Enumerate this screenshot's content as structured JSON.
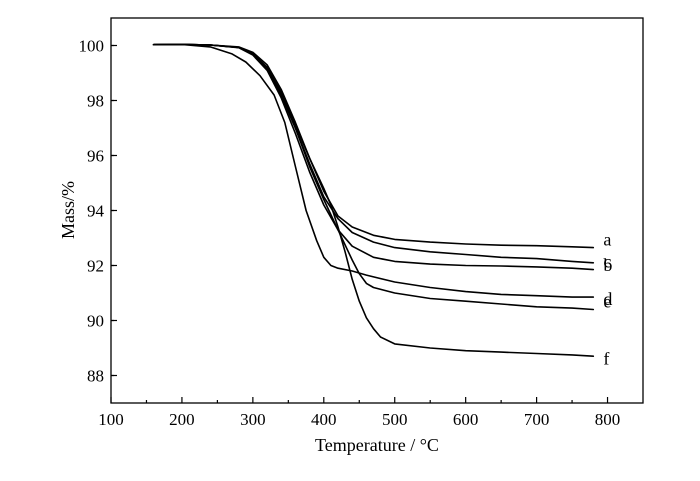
{
  "chart_data": {
    "type": "line",
    "title": "",
    "xlabel": "Temperature / °C",
    "ylabel": "Mass/%",
    "xlim": [
      100,
      850
    ],
    "ylim": [
      87,
      101
    ],
    "xticks": [
      100,
      200,
      300,
      400,
      500,
      600,
      700,
      800
    ],
    "yticks": [
      88,
      90,
      92,
      94,
      96,
      98,
      100
    ],
    "grid": false,
    "legend": "none",
    "series": [
      {
        "name": "a",
        "x": [
          160,
          200,
          240,
          280,
          300,
          320,
          340,
          360,
          380,
          400,
          420,
          440,
          470,
          500,
          550,
          600,
          650,
          700,
          750,
          780
        ],
        "y": [
          100.03,
          100.04,
          100.02,
          99.95,
          99.75,
          99.3,
          98.4,
          97.2,
          95.9,
          94.7,
          93.8,
          93.4,
          93.1,
          92.95,
          92.85,
          92.78,
          92.74,
          92.72,
          92.68,
          92.65
        ]
      },
      {
        "name": "b",
        "x": [
          160,
          200,
          240,
          280,
          300,
          320,
          340,
          360,
          380,
          400,
          420,
          440,
          470,
          500,
          550,
          600,
          650,
          700,
          750,
          780
        ],
        "y": [
          100.03,
          100.04,
          100.02,
          99.93,
          99.7,
          99.2,
          98.2,
          97.0,
          95.7,
          94.5,
          93.7,
          93.2,
          92.85,
          92.65,
          92.5,
          92.4,
          92.3,
          92.25,
          92.15,
          92.1
        ]
      },
      {
        "name": "c",
        "x": [
          160,
          200,
          240,
          280,
          300,
          320,
          340,
          360,
          380,
          400,
          420,
          440,
          470,
          500,
          550,
          600,
          650,
          700,
          750,
          780
        ],
        "y": [
          100.03,
          100.04,
          100.02,
          99.92,
          99.65,
          99.1,
          98.1,
          96.8,
          95.4,
          94.2,
          93.3,
          92.7,
          92.3,
          92.15,
          92.05,
          92.0,
          91.98,
          91.95,
          91.9,
          91.85
        ]
      },
      {
        "name": "d",
        "x": [
          160,
          200,
          240,
          270,
          290,
          310,
          330,
          345,
          360,
          375,
          390,
          400,
          410,
          420,
          440,
          460,
          500,
          550,
          600,
          650,
          700,
          750,
          780
        ],
        "y": [
          100.03,
          100.04,
          99.95,
          99.7,
          99.4,
          98.9,
          98.2,
          97.2,
          95.6,
          94.0,
          92.9,
          92.3,
          92.0,
          91.9,
          91.8,
          91.65,
          91.4,
          91.2,
          91.05,
          90.95,
          90.9,
          90.85,
          90.85
        ]
      },
      {
        "name": "e",
        "x": [
          160,
          200,
          240,
          280,
          300,
          320,
          340,
          360,
          380,
          400,
          420,
          440,
          450,
          460,
          470,
          500,
          550,
          600,
          650,
          700,
          750,
          780
        ],
        "y": [
          100.03,
          100.04,
          100.02,
          99.93,
          99.7,
          99.15,
          98.2,
          97.0,
          95.6,
          94.4,
          93.3,
          92.2,
          91.7,
          91.35,
          91.2,
          91.0,
          90.8,
          90.7,
          90.6,
          90.5,
          90.45,
          90.4
        ]
      },
      {
        "name": "f",
        "x": [
          160,
          200,
          240,
          280,
          300,
          320,
          340,
          360,
          380,
          400,
          410,
          420,
          430,
          440,
          450,
          460,
          470,
          480,
          500,
          550,
          600,
          650,
          700,
          750,
          780
        ],
        "y": [
          100.03,
          100.04,
          100.02,
          99.93,
          99.7,
          99.2,
          98.3,
          97.1,
          95.9,
          94.8,
          94.2,
          93.4,
          92.5,
          91.5,
          90.7,
          90.1,
          89.7,
          89.4,
          89.15,
          89.0,
          88.9,
          88.85,
          88.8,
          88.75,
          88.7
        ]
      }
    ]
  }
}
